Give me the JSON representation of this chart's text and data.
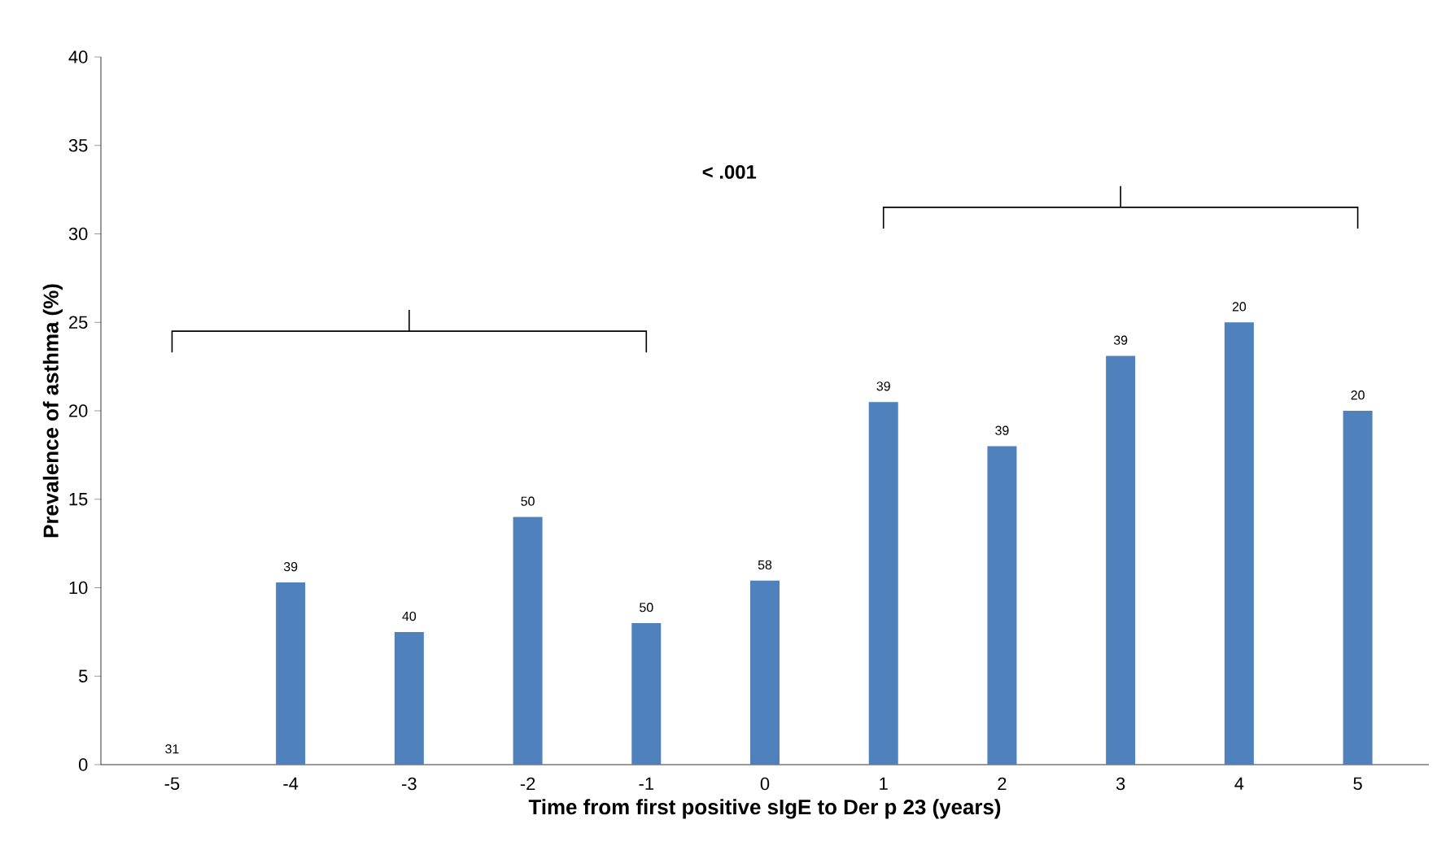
{
  "chart_data": {
    "type": "bar",
    "xlabel": "Time from first positive sIgE to Der p 23 (years)",
    "ylabel": "Prevalence of asthma (%)",
    "categories": [
      "-5",
      "-4",
      "-3",
      "-2",
      "-1",
      "0",
      "1",
      "2",
      "3",
      "4",
      "5"
    ],
    "values": [
      0,
      10.3,
      7.5,
      14,
      8,
      10.4,
      20.5,
      18,
      23.1,
      25,
      20
    ],
    "color": "#4f81bd",
    "ylim": [
      0,
      40
    ],
    "yticks": [
      0,
      5,
      10,
      15,
      20,
      25,
      30,
      35,
      40
    ],
    "annotations": [
      "< .001",
      {
        "text": "31",
        "x": "-5",
        "y": 0
      },
      {
        "text": "39",
        "x": "-4",
        "y": 10.3
      },
      {
        "text": "40",
        "x": "-3",
        "y": 7.5
      },
      {
        "text": "50",
        "x": "-2",
        "y": 14
      },
      {
        "text": "50",
        "x": "-1",
        "y": 8
      },
      {
        "text": "58",
        "x": "0",
        "y": 10.4
      },
      {
        "text": "39",
        "x": "1",
        "y": 20.5
      },
      {
        "text": "39",
        "x": "2",
        "y": 18
      },
      {
        "text": "39",
        "x": "3",
        "y": 23.1
      },
      {
        "text": "20",
        "x": "4",
        "y": 25
      },
      {
        "text": "20",
        "x": "5",
        "y": 20
      }
    ],
    "grid": false
  }
}
